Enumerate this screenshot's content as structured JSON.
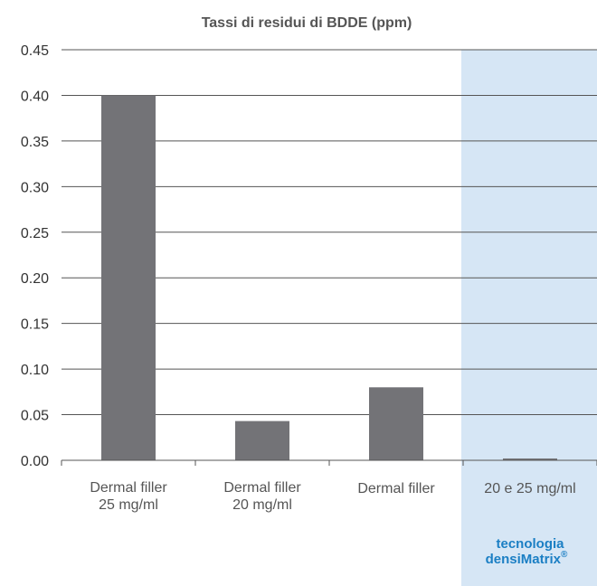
{
  "chart_data": {
    "type": "bar",
    "title": "Tassi di residui di BDDE (ppm)",
    "categories": [
      [
        "Dermal filler",
        "25 mg/ml"
      ],
      [
        "Dermal filler",
        "20 mg/ml"
      ],
      [
        "Dermal filler"
      ],
      [
        "20 e 25 mg/ml"
      ]
    ],
    "values": [
      0.4,
      0.043,
      0.08,
      0.002
    ],
    "ylim": [
      0,
      0.45
    ],
    "yticks": [
      "0.00",
      "0.05",
      "0.10",
      "0.15",
      "0.20",
      "0.25",
      "0.30",
      "0.35",
      "0.40",
      "0.45"
    ],
    "grid": true,
    "highlight_index": 3,
    "highlight_label": [
      "tecnologia",
      "densiMatrix",
      "®"
    ],
    "colors": {
      "bar": "#737377",
      "highlight_band": "#d6e6f5",
      "brand_text": "#1b7fc4",
      "grid": "#555555"
    }
  }
}
